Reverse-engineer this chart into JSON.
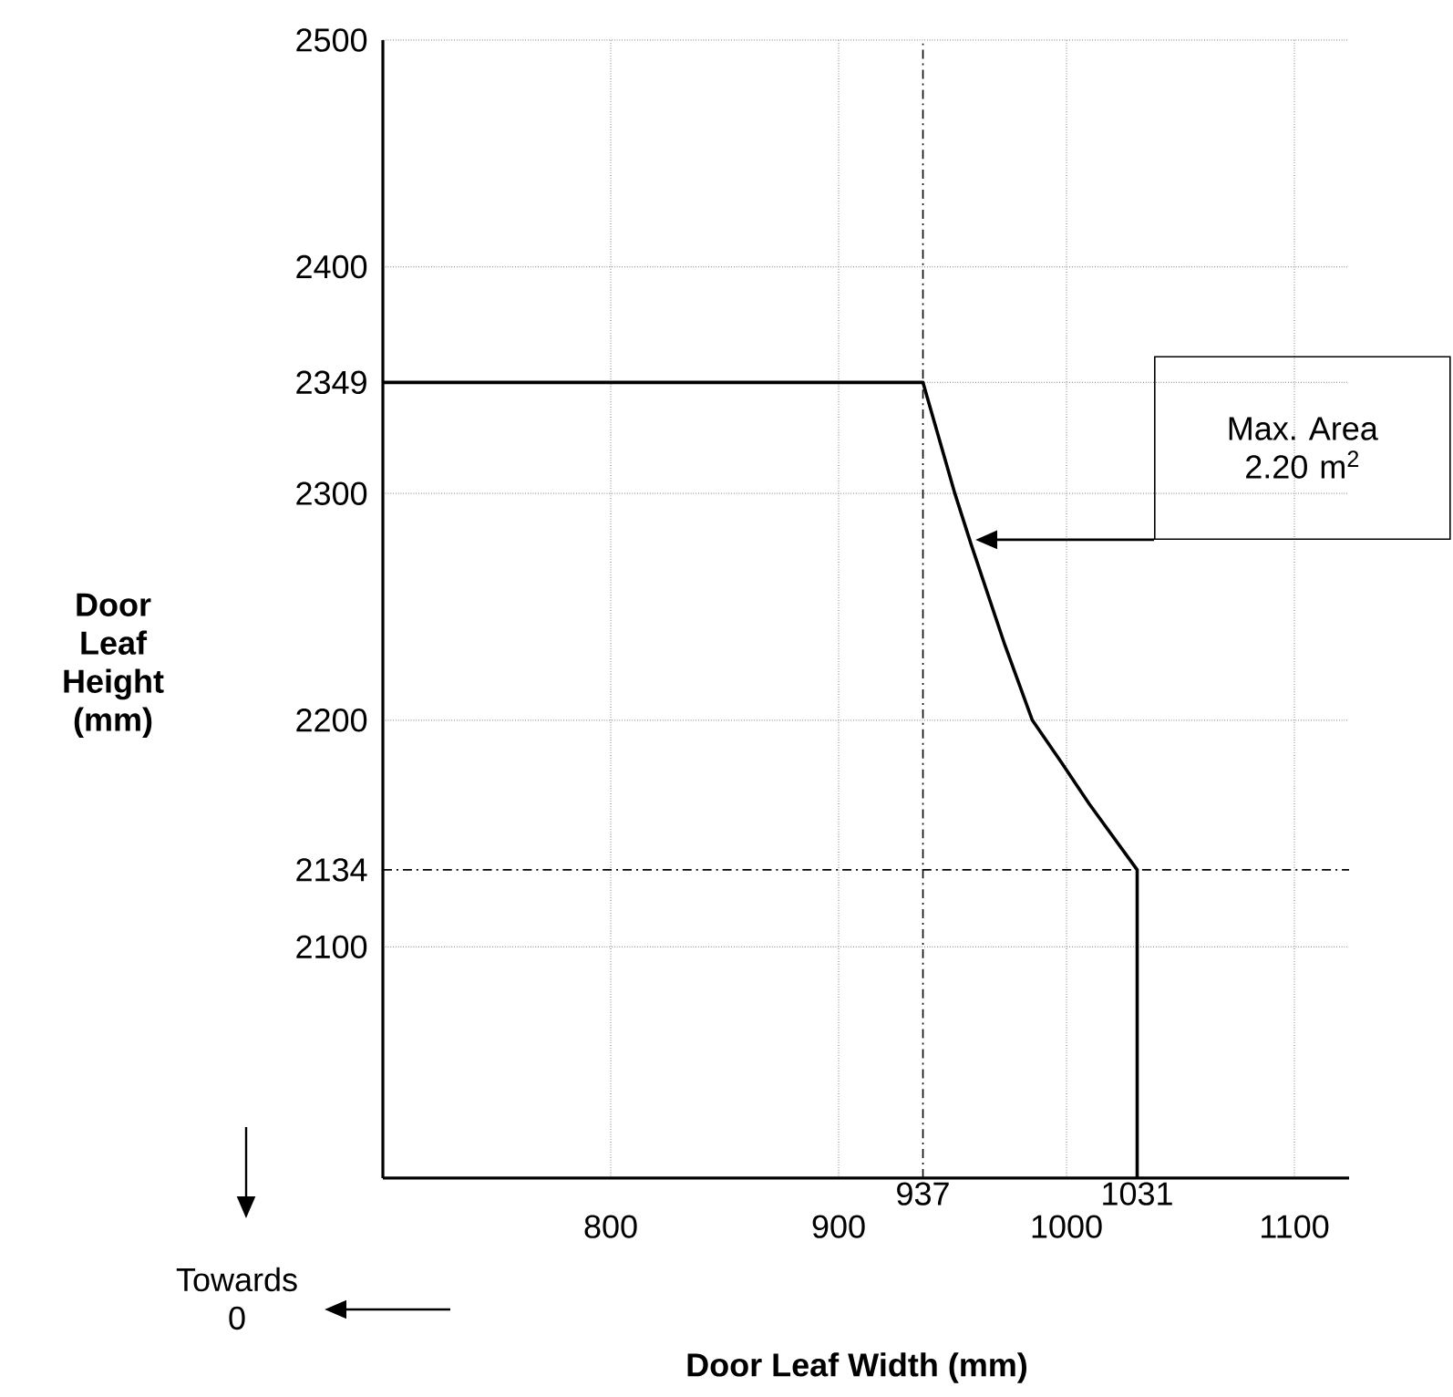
{
  "chart_data": {
    "type": "line",
    "xlabel": "Door Leaf Width (mm)",
    "ylabel": "Door Leaf Height (mm)",
    "x": [
      700,
      937,
      951,
      958,
      973,
      985,
      998,
      1010,
      1031,
      1031
    ],
    "values": [
      2349,
      2349,
      2300,
      2278,
      2233,
      2200,
      2181,
      2163,
      2134,
      1998
    ],
    "color": "#000000",
    "xlim": [
      700,
      1124
    ],
    "ylim": [
      1998,
      2500
    ],
    "xticks": [
      800,
      900,
      1000,
      1100
    ],
    "yticks": [
      2100,
      2134,
      2200,
      2300,
      2349,
      2400,
      2500
    ],
    "grid": true,
    "marker": "none",
    "line_style": "solid",
    "ref_lines": [
      {
        "axis": "x",
        "value": 937,
        "label": "937",
        "line_style": "dashed"
      },
      {
        "axis": "y",
        "value": 2134,
        "line_style": "dashed"
      }
    ],
    "annotations": [
      "Max. Area 2.20 m$^{2}$",
      {
        "text": "1031",
        "x": 1031,
        "y": 1998
      },
      "Towards 0"
    ]
  }
}
